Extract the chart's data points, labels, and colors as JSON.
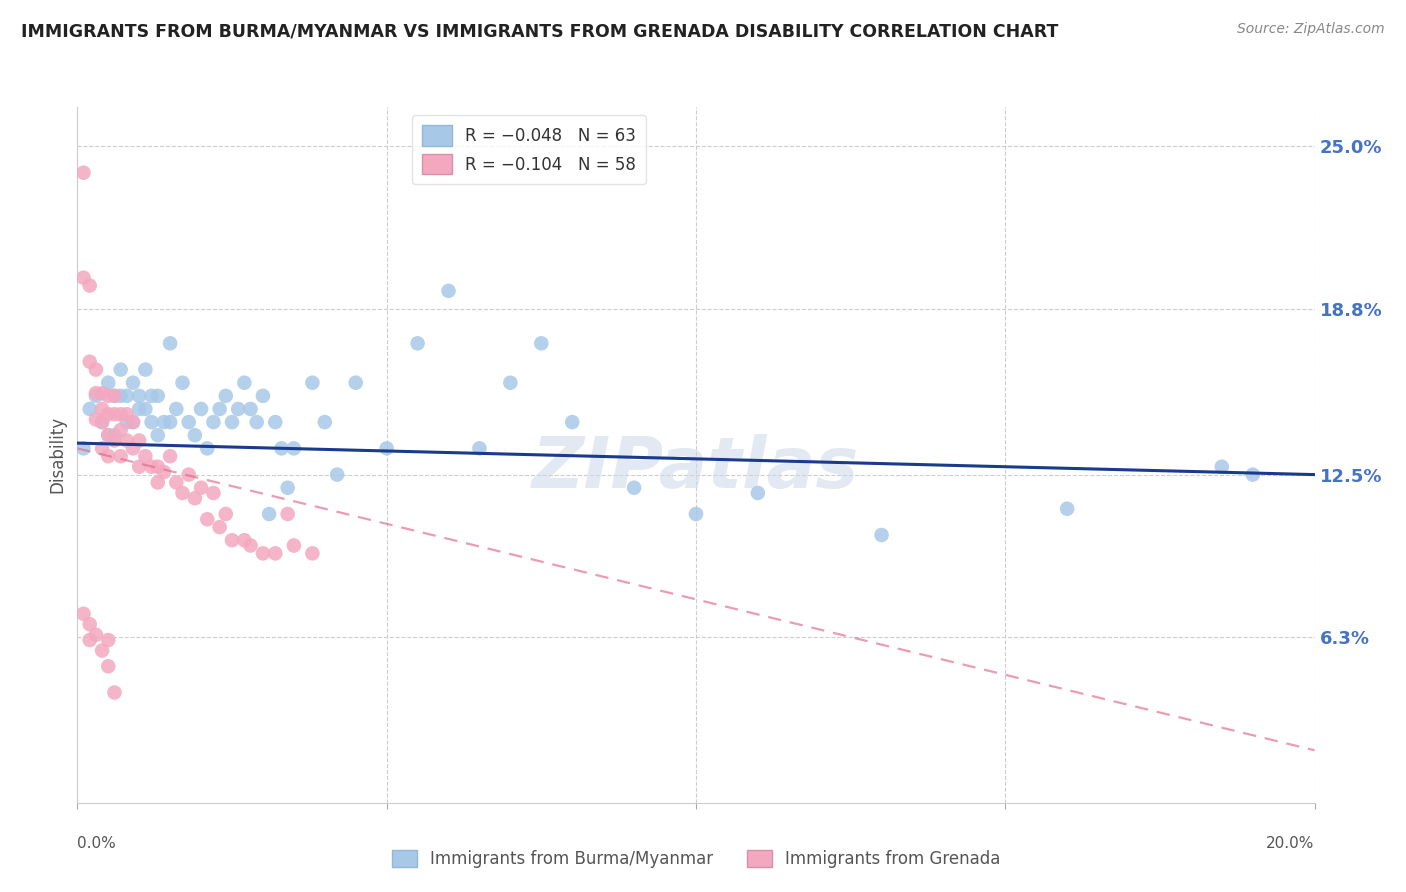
{
  "title": "IMMIGRANTS FROM BURMA/MYANMAR VS IMMIGRANTS FROM GRENADA DISABILITY CORRELATION CHART",
  "source": "Source: ZipAtlas.com",
  "ylabel": "Disability",
  "ytick_labels": [
    "25.0%",
    "18.8%",
    "12.5%",
    "6.3%"
  ],
  "ytick_values": [
    0.25,
    0.188,
    0.125,
    0.063
  ],
  "xlim": [
    0.0,
    0.2
  ],
  "ylim": [
    0.0,
    0.265
  ],
  "color_burma": "#a8c8e8",
  "color_grenada": "#f4a8c0",
  "line_color_burma": "#1a3a8c",
  "line_color_grenada": "#e06888",
  "watermark": "ZIPatlas",
  "burma_scatter_x": [
    0.001,
    0.002,
    0.003,
    0.004,
    0.005,
    0.005,
    0.006,
    0.006,
    0.007,
    0.007,
    0.008,
    0.008,
    0.009,
    0.009,
    0.01,
    0.01,
    0.011,
    0.011,
    0.012,
    0.012,
    0.013,
    0.013,
    0.014,
    0.015,
    0.015,
    0.016,
    0.017,
    0.018,
    0.019,
    0.02,
    0.021,
    0.022,
    0.023,
    0.024,
    0.025,
    0.026,
    0.027,
    0.028,
    0.029,
    0.03,
    0.031,
    0.032,
    0.033,
    0.034,
    0.035,
    0.038,
    0.04,
    0.042,
    0.045,
    0.05,
    0.055,
    0.06,
    0.065,
    0.07,
    0.075,
    0.08,
    0.09,
    0.1,
    0.11,
    0.13,
    0.16,
    0.185,
    0.19
  ],
  "burma_scatter_y": [
    0.135,
    0.15,
    0.155,
    0.145,
    0.14,
    0.16,
    0.155,
    0.14,
    0.155,
    0.165,
    0.145,
    0.155,
    0.16,
    0.145,
    0.15,
    0.155,
    0.165,
    0.15,
    0.155,
    0.145,
    0.155,
    0.14,
    0.145,
    0.175,
    0.145,
    0.15,
    0.16,
    0.145,
    0.14,
    0.15,
    0.135,
    0.145,
    0.15,
    0.155,
    0.145,
    0.15,
    0.16,
    0.15,
    0.145,
    0.155,
    0.11,
    0.145,
    0.135,
    0.12,
    0.135,
    0.16,
    0.145,
    0.125,
    0.16,
    0.135,
    0.175,
    0.195,
    0.135,
    0.16,
    0.175,
    0.145,
    0.12,
    0.11,
    0.118,
    0.102,
    0.112,
    0.128,
    0.125
  ],
  "grenada_scatter_x": [
    0.001,
    0.001,
    0.002,
    0.002,
    0.003,
    0.003,
    0.003,
    0.004,
    0.004,
    0.004,
    0.004,
    0.005,
    0.005,
    0.005,
    0.005,
    0.006,
    0.006,
    0.006,
    0.007,
    0.007,
    0.007,
    0.008,
    0.008,
    0.009,
    0.009,
    0.01,
    0.01,
    0.011,
    0.012,
    0.013,
    0.013,
    0.014,
    0.015,
    0.016,
    0.017,
    0.018,
    0.019,
    0.02,
    0.021,
    0.022,
    0.023,
    0.024,
    0.025,
    0.027,
    0.028,
    0.03,
    0.032,
    0.034,
    0.035,
    0.038,
    0.001,
    0.002,
    0.002,
    0.003,
    0.004,
    0.005,
    0.005,
    0.006
  ],
  "grenada_scatter_y": [
    0.24,
    0.2,
    0.197,
    0.168,
    0.165,
    0.156,
    0.146,
    0.156,
    0.15,
    0.145,
    0.135,
    0.155,
    0.148,
    0.14,
    0.132,
    0.155,
    0.148,
    0.138,
    0.148,
    0.142,
    0.132,
    0.148,
    0.138,
    0.145,
    0.135,
    0.138,
    0.128,
    0.132,
    0.128,
    0.122,
    0.128,
    0.126,
    0.132,
    0.122,
    0.118,
    0.125,
    0.116,
    0.12,
    0.108,
    0.118,
    0.105,
    0.11,
    0.1,
    0.1,
    0.098,
    0.095,
    0.095,
    0.11,
    0.098,
    0.095,
    0.072,
    0.068,
    0.062,
    0.064,
    0.058,
    0.062,
    0.052,
    0.042
  ],
  "burma_line_x": [
    0.0,
    0.2
  ],
  "burma_line_y": [
    0.137,
    0.125
  ],
  "grenada_line_x": [
    0.0,
    0.2
  ],
  "grenada_line_y": [
    0.135,
    0.02
  ]
}
